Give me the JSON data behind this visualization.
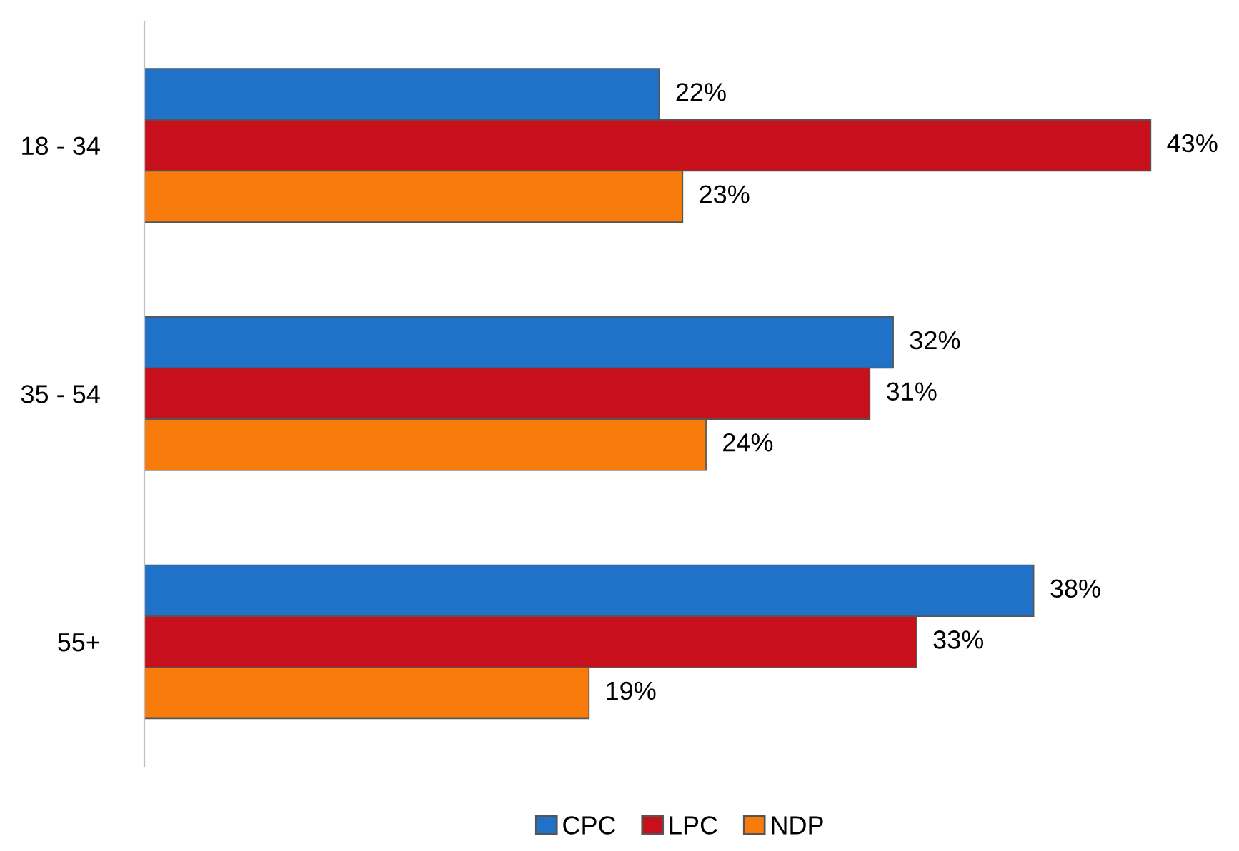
{
  "chart_data": {
    "type": "bar",
    "orientation": "horizontal",
    "categories": [
      "18 - 34",
      "35 - 54",
      "55+"
    ],
    "series": [
      {
        "name": "CPC",
        "color": "#1f72c8",
        "values": [
          22,
          32,
          38
        ],
        "value_labels": [
          "22%",
          "32%",
          "38%"
        ]
      },
      {
        "name": "LPC",
        "color": "#c8101c",
        "values": [
          43,
          31,
          33
        ],
        "value_labels": [
          "43%",
          "31%",
          "33%"
        ]
      },
      {
        "name": "NDP",
        "color": "#f77c0c",
        "values": [
          23,
          24,
          19
        ],
        "value_labels": [
          "23%",
          "24%",
          "19%"
        ]
      }
    ],
    "legend": "bottom",
    "grid": false
  }
}
